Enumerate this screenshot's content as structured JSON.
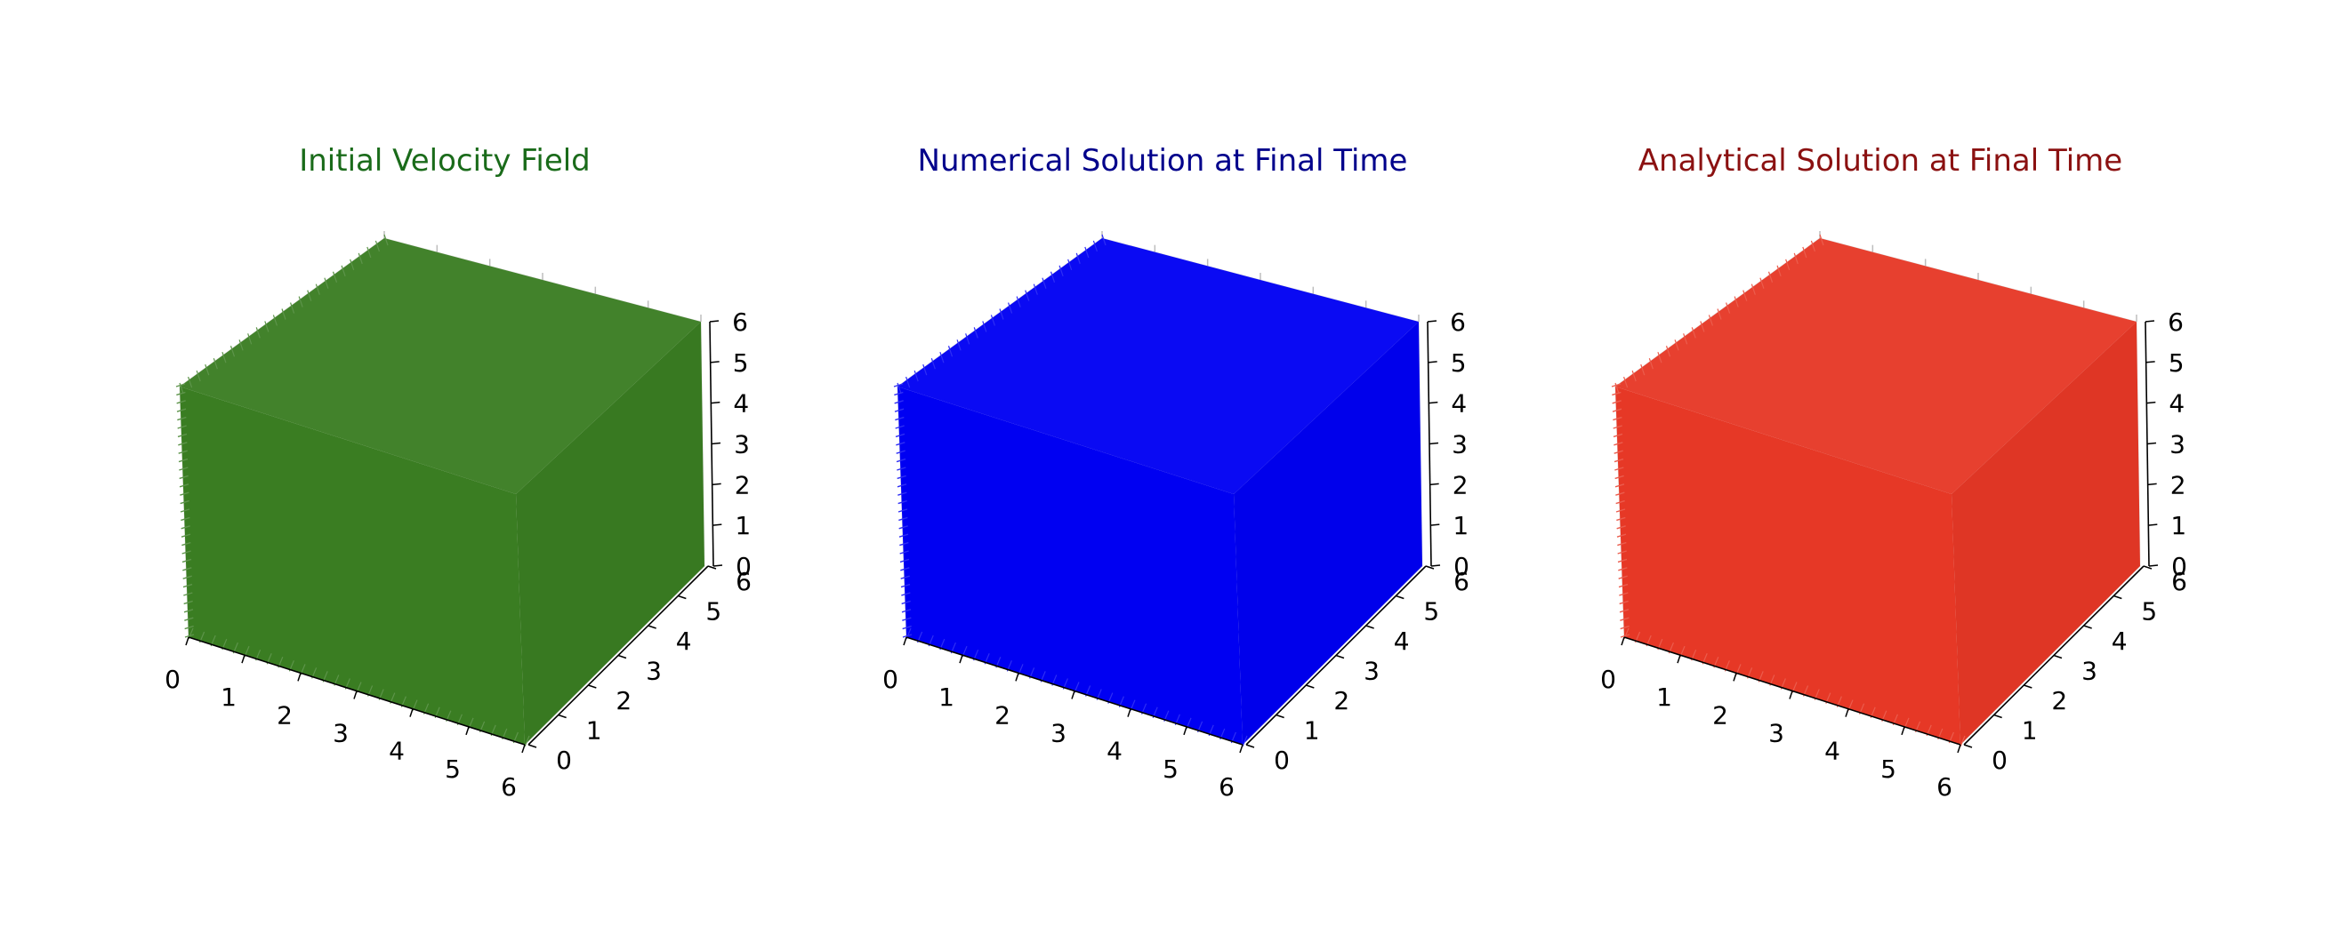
{
  "figure": {
    "panels": [
      {
        "title": "Initial Velocity Field",
        "title_color": "#1a6b1a",
        "fill_color": "#3a7d22"
      },
      {
        "title": "Numerical Solution at Final Time",
        "title_color": "#00008b",
        "fill_color": "#0000f2"
      },
      {
        "title": "Analytical Solution at Final Time",
        "title_color": "#8b1111",
        "fill_color": "#e63826"
      }
    ]
  },
  "chart_data": [
    {
      "type": "quiver3d",
      "title": "Initial Velocity Field",
      "series_color": "#3a7d22",
      "xlim": [
        0,
        6
      ],
      "ylim": [
        0,
        6
      ],
      "zlim": [
        0,
        6
      ],
      "x_ticks": [
        "0",
        "1",
        "2",
        "3",
        "4",
        "5",
        "6"
      ],
      "y_ticks": [
        "0",
        "1",
        "2",
        "3",
        "4",
        "5",
        "6"
      ],
      "z_ticks": [
        "0",
        "1",
        "2",
        "3",
        "4",
        "5",
        "6"
      ],
      "grid": true
    },
    {
      "type": "quiver3d",
      "title": "Numerical Solution at Final Time",
      "series_color": "#0000f2",
      "xlim": [
        0,
        6
      ],
      "ylim": [
        0,
        6
      ],
      "zlim": [
        0,
        6
      ],
      "x_ticks": [
        "0",
        "1",
        "2",
        "3",
        "4",
        "5",
        "6"
      ],
      "y_ticks": [
        "0",
        "1",
        "2",
        "3",
        "4",
        "5",
        "6"
      ],
      "z_ticks": [
        "0",
        "1",
        "2",
        "3",
        "4",
        "5",
        "6"
      ],
      "grid": true
    },
    {
      "type": "quiver3d",
      "title": "Analytical Solution at Final Time",
      "series_color": "#e63826",
      "xlim": [
        0,
        6
      ],
      "ylim": [
        0,
        6
      ],
      "zlim": [
        0,
        6
      ],
      "x_ticks": [
        "0",
        "1",
        "2",
        "3",
        "4",
        "5",
        "6"
      ],
      "y_ticks": [
        "0",
        "1",
        "2",
        "3",
        "4",
        "5",
        "6"
      ],
      "z_ticks": [
        "0",
        "1",
        "2",
        "3",
        "4",
        "5",
        "6"
      ],
      "grid": true
    }
  ]
}
